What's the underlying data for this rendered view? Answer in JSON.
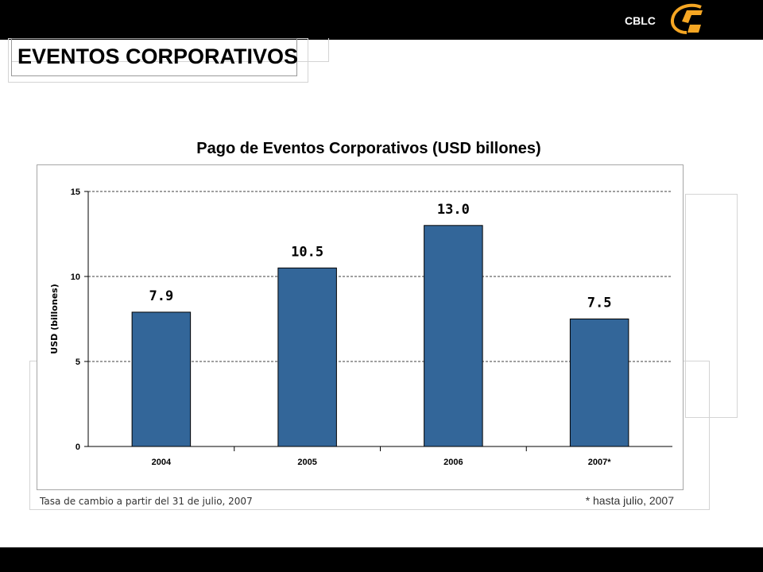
{
  "header": {
    "brand": "CBLC",
    "logo_icon": "cblc-logo-icon"
  },
  "page": {
    "title": "EVENTOS CORPORATIVOS"
  },
  "colors": {
    "bar": "#336699",
    "bar_outline": "#000000",
    "grid": "#000000",
    "bars_top_bottom": "#000000",
    "logo_orange": "#F5A623"
  },
  "chart_data": {
    "type": "bar",
    "title": "Pago de Eventos Corporativos (USD billones)",
    "xlabel": "",
    "ylabel": "USD (billones)",
    "categories": [
      "2004",
      "2005",
      "2006",
      "2007*"
    ],
    "values": [
      7.9,
      10.5,
      13.0,
      7.5
    ],
    "data_labels": [
      "7.9",
      "10.5",
      "13.0",
      "7.5"
    ],
    "ylim": [
      0,
      15
    ],
    "yticks": [
      "0",
      "5",
      "10",
      "15"
    ],
    "ytick_values": [
      0,
      5,
      10,
      15
    ],
    "grid": true,
    "legend": "none"
  },
  "notes": {
    "exchange_rate": "Tasa de cambio a partir del 31 de julio, 2007",
    "footnote": "* hasta julio, 2007"
  }
}
